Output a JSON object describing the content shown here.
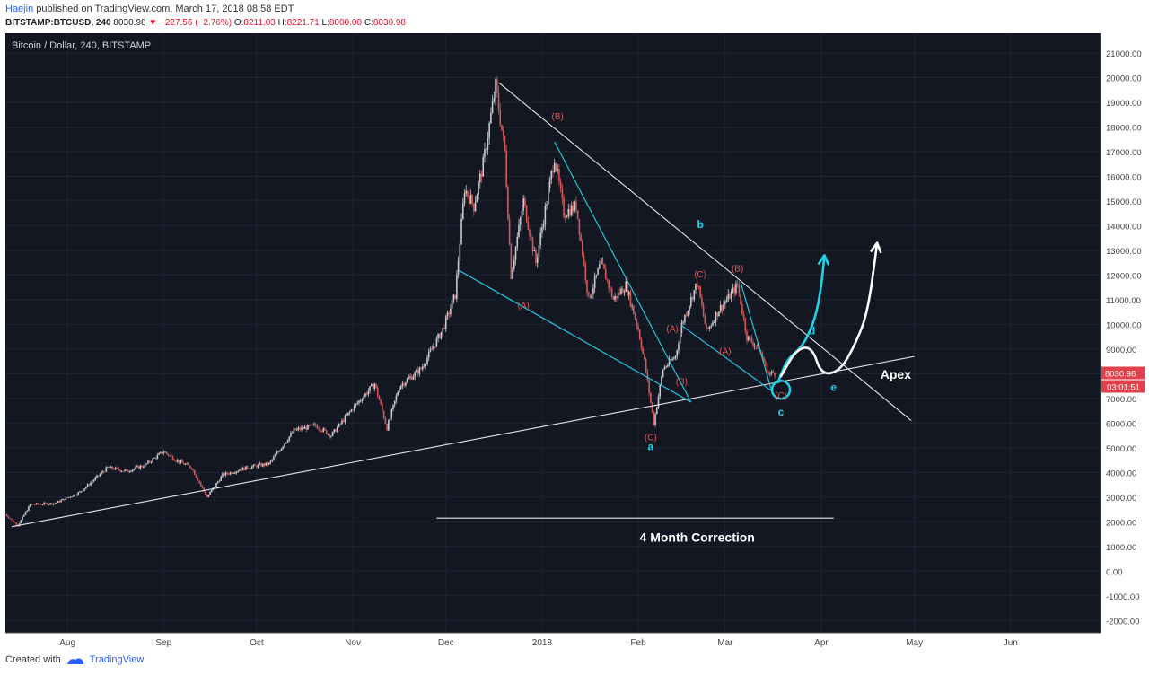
{
  "header": {
    "author": "Haejin",
    "published_text": " published on TradingView.com, March 17, 2018 08:58 EDT",
    "symbol": "BITSTAMP:BTCUSD, 240",
    "last": "8030.98",
    "change": "▼ −227.56 (−2.76%)",
    "o_label": "O:",
    "o_val": "8211.03",
    "h_label": "H:",
    "h_val": "8221.71",
    "l_label": "L:",
    "l_val": "8000.00",
    "c_label": "C:",
    "c_val": "8030.98"
  },
  "footer": {
    "created_with": "Created with",
    "brand": "TradingView"
  },
  "colors": {
    "background": "#131722",
    "candle_up": "#c7c9cc",
    "candle_down": "#d35a5a",
    "cyan": "#22d3e8",
    "wave_label": "#e05555",
    "price_tag": "#e0414b"
  },
  "chart_data": {
    "type": "candlestick",
    "title": "Bitcoin / Dollar, 240, BITSTAMP",
    "ylim": [
      -2500,
      21800
    ],
    "y_ticks": [
      "21000.00",
      "20000.00",
      "19000.00",
      "18000.00",
      "17000.00",
      "16000.00",
      "15000.00",
      "14000.00",
      "13000.00",
      "12000.00",
      "11000.00",
      "10000.00",
      "9000.00",
      "8000.00",
      "7000.00",
      "6000.00",
      "5000.00",
      "4000.00",
      "3000.00",
      "2000.00",
      "1000.00",
      "0.00",
      "-1000.00",
      "-2000.00"
    ],
    "x_ticks": [
      "Aug",
      "Sep",
      "Oct",
      "Nov",
      "Dec",
      "2018",
      "Feb",
      "Mar",
      "Apr",
      "May",
      "Jun"
    ],
    "x_tick_dates": [
      "2017-08-01",
      "2017-09-01",
      "2017-10-01",
      "2017-11-01",
      "2017-12-01",
      "2018-01-01",
      "2018-02-01",
      "2018-03-01",
      "2018-04-01",
      "2018-05-01",
      "2018-06-01"
    ],
    "x_range": [
      "2017-07-12",
      "2018-06-30"
    ],
    "price_path": [
      [
        "2017-07-12",
        2300
      ],
      [
        "2017-07-16",
        1850
      ],
      [
        "2017-07-20",
        2700
      ],
      [
        "2017-07-28",
        2750
      ],
      [
        "2017-08-05",
        3200
      ],
      [
        "2017-08-14",
        4200
      ],
      [
        "2017-08-20",
        4050
      ],
      [
        "2017-08-26",
        4300
      ],
      [
        "2017-09-01",
        4850
      ],
      [
        "2017-09-05",
        4500
      ],
      [
        "2017-09-10",
        4200
      ],
      [
        "2017-09-15",
        3000
      ],
      [
        "2017-09-20",
        3900
      ],
      [
        "2017-09-28",
        4200
      ],
      [
        "2017-10-05",
        4350
      ],
      [
        "2017-10-13",
        5700
      ],
      [
        "2017-10-20",
        5900
      ],
      [
        "2017-10-25",
        5500
      ],
      [
        "2017-11-01",
        6600
      ],
      [
        "2017-11-08",
        7600
      ],
      [
        "2017-11-12",
        5800
      ],
      [
        "2017-11-16",
        7500
      ],
      [
        "2017-11-23",
        8200
      ],
      [
        "2017-11-30",
        9800
      ],
      [
        "2017-12-04",
        11200
      ],
      [
        "2017-12-07",
        15500
      ],
      [
        "2017-12-10",
        14800
      ],
      [
        "2017-12-13",
        16500
      ],
      [
        "2017-12-17",
        19650
      ],
      [
        "2017-12-20",
        17000
      ],
      [
        "2017-12-22",
        12000
      ],
      [
        "2017-12-26",
        15000
      ],
      [
        "2017-12-30",
        12500
      ],
      [
        "2018-01-05",
        16800
      ],
      [
        "2018-01-08",
        14500
      ],
      [
        "2018-01-12",
        14800
      ],
      [
        "2018-01-16",
        11000
      ],
      [
        "2018-01-20",
        12500
      ],
      [
        "2018-01-24",
        11000
      ],
      [
        "2018-01-28",
        11600
      ],
      [
        "2018-02-01",
        9800
      ],
      [
        "2018-02-03",
        8500
      ],
      [
        "2018-02-06",
        6000
      ],
      [
        "2018-02-09",
        8200
      ],
      [
        "2018-02-13",
        8700
      ],
      [
        "2018-02-15",
        10000
      ],
      [
        "2018-02-20",
        11700
      ],
      [
        "2018-02-23",
        9700
      ],
      [
        "2018-02-27",
        10600
      ],
      [
        "2018-03-01",
        10900
      ],
      [
        "2018-03-05",
        11600
      ],
      [
        "2018-03-08",
        9500
      ],
      [
        "2018-03-12",
        9000
      ],
      [
        "2018-03-15",
        8000
      ],
      [
        "2018-03-17",
        8030
      ]
    ],
    "last_price": "8030.98",
    "countdown": "03:01:51",
    "trendlines": [
      {
        "from": [
          "2017-07-14",
          1800
        ],
        "to": [
          "2018-05-01",
          8700
        ],
        "color": "white"
      },
      {
        "from": [
          "2017-12-18",
          19800
        ],
        "to": [
          "2018-04-30",
          6100
        ],
        "color": "white"
      },
      {
        "from": [
          "2017-12-05",
          12200
        ],
        "to": [
          "2018-02-18",
          6850
        ],
        "color": "cyan"
      },
      {
        "from": [
          "2018-01-05",
          17400
        ],
        "to": [
          "2018-02-18",
          6850
        ],
        "color": "cyan"
      },
      {
        "from": [
          "2018-02-15",
          9950
        ],
        "to": [
          "2018-03-16",
          7300
        ],
        "color": "cyan"
      },
      {
        "from": [
          "2018-03-06",
          11700
        ],
        "to": [
          "2018-03-16",
          7300
        ],
        "color": "cyan"
      },
      {
        "from": [
          "2017-11-28",
          2150
        ],
        "to": [
          "2018-04-05",
          2150
        ],
        "color": "white"
      }
    ],
    "wave_labels": [
      {
        "text": "(B)",
        "x": "2018-01-06",
        "y": 18300
      },
      {
        "text": "(A)",
        "x": "2017-12-26",
        "y": 10650
      },
      {
        "text": "(C)",
        "x": "2018-02-05",
        "y": 5300
      },
      {
        "text": "(A)",
        "x": "2018-02-12",
        "y": 9700
      },
      {
        "text": "(B)",
        "x": "2018-02-15",
        "y": 7550
      },
      {
        "text": "(C)",
        "x": "2018-02-21",
        "y": 11900
      },
      {
        "text": "(A)",
        "x": "2018-03-01",
        "y": 8800
      },
      {
        "text": "(B)",
        "x": "2018-03-05",
        "y": 12150
      },
      {
        "text": "(C)",
        "x": "2018-03-19",
        "y": 7000
      }
    ],
    "cyan_labels": [
      {
        "text": "a",
        "x": "2018-02-05",
        "y": 4900
      },
      {
        "text": "b",
        "x": "2018-02-21",
        "y": 13900
      },
      {
        "text": "c",
        "x": "2018-03-19",
        "y": 6300
      },
      {
        "text": "d",
        "x": "2018-03-29",
        "y": 9600
      },
      {
        "text": "e",
        "x": "2018-04-05",
        "y": 7300
      }
    ],
    "annotations": [
      {
        "text": "Apex",
        "x": "2018-04-25",
        "y": 7800
      },
      {
        "text": "4 Month Correction",
        "x": "2018-02-20",
        "y": 1200
      }
    ],
    "projection_cyan": [
      [
        "2018-03-18",
        7650
      ],
      [
        "2018-03-21",
        8600
      ],
      [
        "2018-03-26",
        9100
      ],
      [
        "2018-03-30",
        10200
      ],
      [
        "2018-04-01",
        11500
      ],
      [
        "2018-04-02",
        12800
      ]
    ],
    "projection_white": [
      [
        "2018-03-19",
        7900
      ],
      [
        "2018-03-24",
        9000
      ],
      [
        "2018-03-29",
        9100
      ],
      [
        "2018-04-01",
        7950
      ],
      [
        "2018-04-07",
        8100
      ],
      [
        "2018-04-12",
        9200
      ],
      [
        "2018-04-16",
        10500
      ],
      [
        "2018-04-19",
        13300
      ]
    ]
  }
}
